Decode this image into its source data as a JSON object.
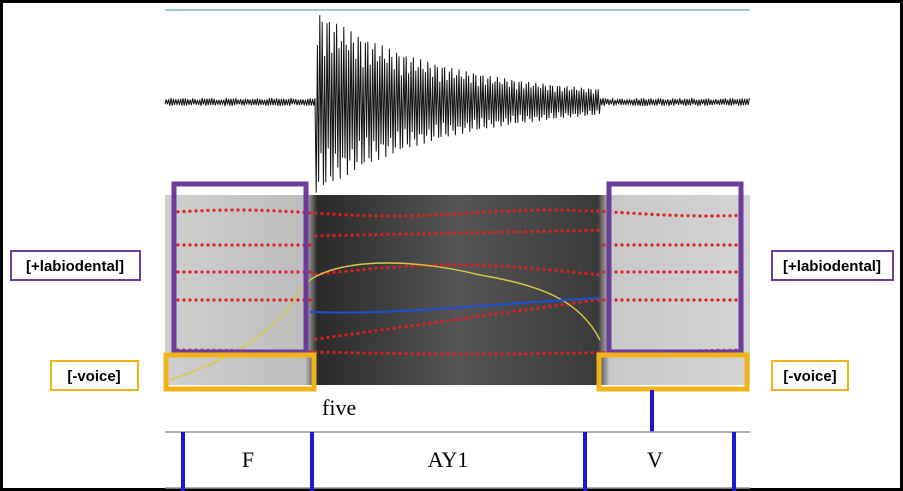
{
  "annotations": {
    "left": {
      "place": "[+labiodental]",
      "voice": "[-voice]"
    },
    "right": {
      "place": "[+labiodental]",
      "voice": "[-voice]"
    }
  },
  "word_tier": {
    "word": "five"
  },
  "phone_tier": {
    "phones": [
      "F",
      "AY1",
      "V"
    ]
  }
}
